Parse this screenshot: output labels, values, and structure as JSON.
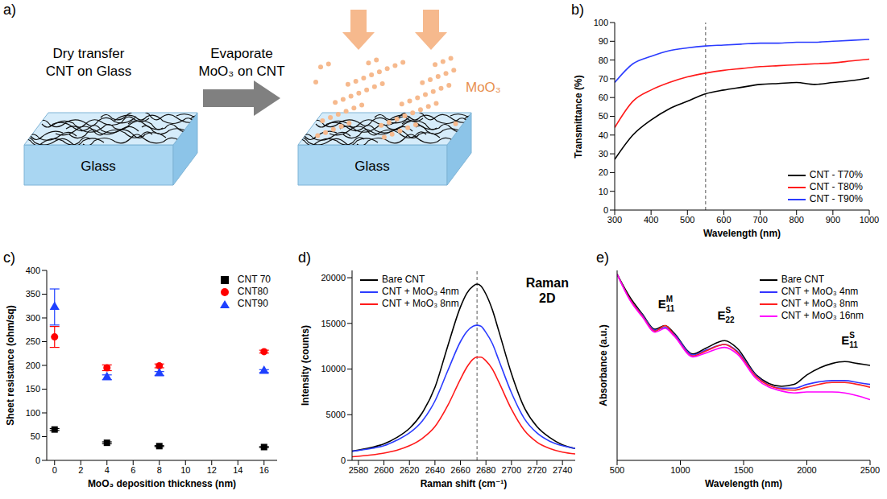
{
  "panel_a": {
    "panel": "a)",
    "step_1": [
      "Dry transfer",
      "CNT on Glass"
    ],
    "step_2": [
      "Evaporate",
      "MoO₃ on CNT"
    ],
    "substrate_labels": [
      "Glass",
      "Glass"
    ],
    "deposit_label": "MoO₃"
  },
  "chart_data": [
    {
      "panel": "b)",
      "type": "line",
      "x_label": "Wavelength (nm)",
      "y_label": "Transmittance (%)",
      "x": [
        300,
        350,
        400,
        450,
        500,
        550,
        600,
        650,
        700,
        750,
        800,
        850,
        900,
        950,
        1000
      ],
      "series": [
        {
          "name": "CNT - T70%",
          "color": "#000000",
          "values": [
            27,
            40,
            48,
            54,
            58,
            62,
            64,
            65.5,
            67,
            67.5,
            68,
            67,
            68,
            69,
            70.5
          ]
        },
        {
          "name": "CNT - T80%",
          "color": "#ff1a1a",
          "values": [
            44,
            58,
            64,
            68,
            71,
            73,
            74.5,
            75.5,
            76.5,
            77,
            77.5,
            78,
            78.5,
            79.5,
            80.5
          ]
        },
        {
          "name": "CNT - T90%",
          "color": "#2b3cff",
          "values": [
            68,
            78,
            82,
            85,
            86.5,
            87.5,
            88,
            88.5,
            89,
            89,
            89.5,
            89.5,
            90,
            90.5,
            91
          ]
        }
      ],
      "xlim": [
        300,
        1000
      ],
      "xticks": [
        300,
        400,
        500,
        600,
        700,
        800,
        900,
        1000
      ],
      "ylim": [
        0,
        100
      ],
      "yticks": [
        0,
        10,
        20,
        30,
        40,
        50,
        60,
        70,
        80,
        90,
        100
      ],
      "vline": 550,
      "legend": "lower right"
    },
    {
      "panel": "c)",
      "type": "scatter",
      "x_label": "MoO₃ deposition thickness (nm)",
      "y_label": "Sheet resistance (ohm/sq)",
      "x": [
        0,
        4,
        8,
        16
      ],
      "series": [
        {
          "name": "CNT 70",
          "color": "#000000",
          "marker": "square",
          "values": [
            65,
            37,
            30,
            28
          ],
          "errors": [
            2,
            2,
            1,
            1
          ]
        },
        {
          "name": "CNT80",
          "color": "#ff0000",
          "marker": "circle",
          "values": [
            260,
            195,
            199,
            229
          ],
          "errors": [
            22,
            6,
            4,
            3
          ]
        },
        {
          "name": "CNT90",
          "color": "#1e40ff",
          "marker": "triangle",
          "values": [
            323,
            175,
            183,
            188
          ],
          "errors": [
            38,
            5,
            4,
            3
          ]
        }
      ],
      "xlim": [
        -0.6,
        17
      ],
      "xticks": [
        0,
        2,
        4,
        6,
        8,
        10,
        12,
        14,
        16
      ],
      "ylim": [
        0,
        400
      ],
      "yticks": [
        0,
        50,
        100,
        150,
        200,
        250,
        300,
        350,
        400
      ],
      "legend": "upper right"
    },
    {
      "panel": "d)",
      "type": "line",
      "x_label": "Raman shift (cm⁻¹)",
      "y_label": "Intensity (counts)",
      "annotation": [
        "Raman",
        "2D"
      ],
      "x": [
        2575,
        2590,
        2600,
        2610,
        2620,
        2630,
        2640,
        2650,
        2660,
        2665,
        2670,
        2673,
        2676,
        2680,
        2685,
        2690,
        2700,
        2710,
        2720,
        2730,
        2740,
        2750
      ],
      "series": [
        {
          "name": "Bare CNT",
          "color": "#000000",
          "values": [
            1000,
            1400,
            1800,
            2500,
            3500,
            5200,
            8000,
            12500,
            16800,
            18300,
            19100,
            19300,
            19100,
            18200,
            16500,
            14200,
            9500,
            5800,
            3700,
            2500,
            1700,
            1300
          ]
        },
        {
          "name": "CNT + MoO₃ 4nm",
          "color": "#2b3cff",
          "values": [
            1000,
            1300,
            1600,
            2200,
            3000,
            4300,
            6500,
            9800,
            13000,
            14100,
            14700,
            14800,
            14700,
            14000,
            12800,
            11000,
            7400,
            4600,
            3000,
            2100,
            1600,
            1300
          ]
        },
        {
          "name": "CNT + MoO₃ 8nm",
          "color": "#ff1a1a",
          "values": [
            400,
            600,
            800,
            1100,
            1600,
            2400,
            3700,
            6000,
            8900,
            10200,
            11100,
            11300,
            11300,
            10900,
            10000,
            8600,
            5600,
            3300,
            2000,
            1300,
            900,
            700
          ]
        }
      ],
      "xlim": [
        2575,
        2750
      ],
      "xticks": [
        2580,
        2600,
        2620,
        2640,
        2660,
        2680,
        2700,
        2720,
        2740
      ],
      "ylim": [
        0,
        20800
      ],
      "yticks": [
        0,
        5000,
        10000,
        15000,
        20000
      ],
      "vline": 2673,
      "legend": "upper left"
    },
    {
      "panel": "e)",
      "type": "line",
      "x_label": "Wavelength (nm)",
      "y_label": "Absorbance (a.u.)",
      "tick_labels": "x",
      "annotations": [
        {
          "text": "E",
          "sub": "11",
          "sup": "M",
          "x": 880,
          "y": 0.8
        },
        {
          "text": "E",
          "sub": "22",
          "sup": "S",
          "x": 1350,
          "y": 0.74
        },
        {
          "text": "E",
          "sub": "11",
          "sup": "S",
          "x": 2330,
          "y": 0.61
        }
      ],
      "x": [
        500,
        600,
        700,
        800,
        880,
        950,
        1100,
        1200,
        1350,
        1450,
        1600,
        1800,
        1900,
        2000,
        2200,
        2300,
        2400,
        2500
      ],
      "series": [
        {
          "name": "Bare CNT",
          "color": "#000000",
          "values": [
            0.98,
            0.86,
            0.77,
            0.69,
            0.71,
            0.67,
            0.56,
            0.59,
            0.63,
            0.59,
            0.45,
            0.39,
            0.4,
            0.45,
            0.51,
            0.52,
            0.51,
            0.5
          ]
        },
        {
          "name": "CNT + MoO₃ 4nm",
          "color": "#3333ff",
          "values": [
            0.98,
            0.85,
            0.765,
            0.685,
            0.7,
            0.665,
            0.555,
            0.58,
            0.61,
            0.575,
            0.445,
            0.38,
            0.38,
            0.4,
            0.42,
            0.42,
            0.41,
            0.4
          ]
        },
        {
          "name": "CNT + MoO₃ 8nm",
          "color": "#ff2020",
          "values": [
            0.98,
            0.85,
            0.76,
            0.68,
            0.71,
            0.66,
            0.55,
            0.575,
            0.61,
            0.57,
            0.44,
            0.375,
            0.37,
            0.385,
            0.41,
            0.41,
            0.4,
            0.385
          ]
        },
        {
          "name": "CNT + MoO₃ 16nm",
          "color": "#ff00ff",
          "values": [
            0.98,
            0.845,
            0.755,
            0.675,
            0.695,
            0.655,
            0.545,
            0.565,
            0.595,
            0.56,
            0.43,
            0.365,
            0.355,
            0.36,
            0.36,
            0.355,
            0.34,
            0.32
          ]
        }
      ],
      "xlim": [
        500,
        2500
      ],
      "xticks": [
        500,
        1000,
        1500,
        2000,
        2500
      ],
      "ylim": [
        0,
        1
      ],
      "legend": "upper right"
    }
  ]
}
